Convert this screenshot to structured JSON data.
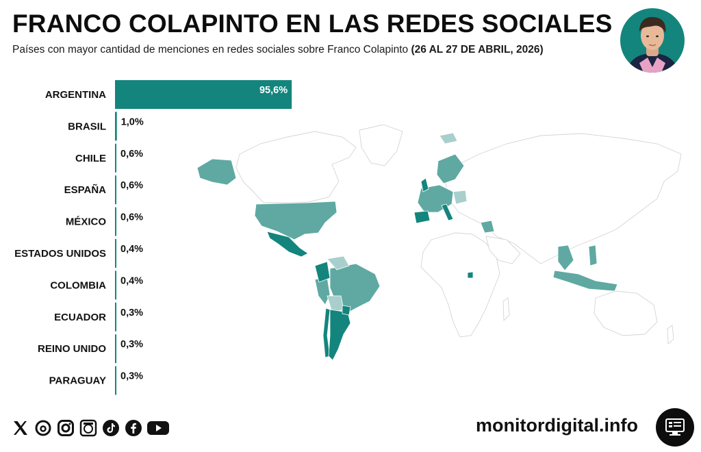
{
  "header": {
    "title": "FRANCO COLAPINTO EN LAS REDES SOCIALES",
    "subtitle": "Países con mayor cantidad de menciones en redes sociales sobre Franco Colapinto",
    "subtitle_date": "(26 AL 27 DE ABRIL, 2026)"
  },
  "chart_data": {
    "type": "bar",
    "orientation": "horizontal",
    "title": "FRANCO COLAPINTO EN LAS REDES SOCIALES",
    "categories": [
      "ARGENTINA",
      "BRASIL",
      "CHILE",
      "ESPAÑA",
      "MÉXICO",
      "ESTADOS UNIDOS",
      "COLOMBIA",
      "ECUADOR",
      "REINO UNIDO",
      "PARAGUAY"
    ],
    "values": [
      95.6,
      1.0,
      0.6,
      0.6,
      0.6,
      0.4,
      0.4,
      0.3,
      0.3,
      0.3
    ],
    "value_labels": [
      "95,6%",
      "1,0%",
      "0,6%",
      "0,6%",
      "0,6%",
      "0,4%",
      "0,4%",
      "0,3%",
      "0,3%",
      "0,3%"
    ],
    "unit": "%",
    "xlim": [
      0,
      100
    ],
    "grid": false,
    "legend": "none",
    "bar_color": "#13857d"
  },
  "colors": {
    "accent": "#13857d",
    "map_dark": "#13857d",
    "map_medium": "#5fa9a2",
    "map_light": "#a8cfcb",
    "map_base": "#ffffff",
    "map_border": "#d4d4d4"
  },
  "footer": {
    "brand": "monitordigital.info",
    "socials": [
      "x-icon",
      "threads-icon",
      "instagram-icon",
      "newsletter-icon",
      "tiktok-icon",
      "facebook-icon",
      "youtube-icon"
    ],
    "brand_icon": "monitor-icon"
  },
  "avatar": {
    "icon": "person-portrait-icon"
  }
}
